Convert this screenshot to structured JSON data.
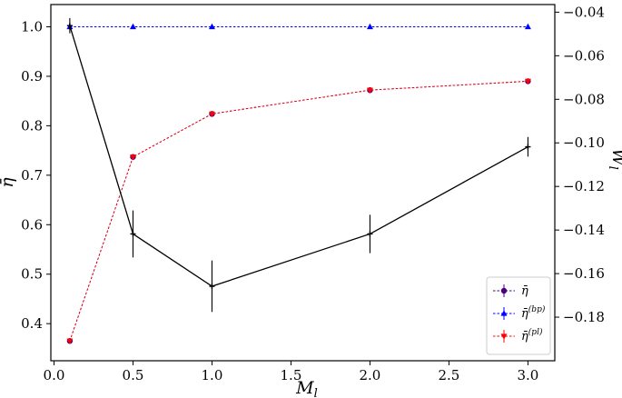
{
  "chart_data": {
    "type": "line",
    "xlabel": "M_l",
    "ylabel_left": "η̄",
    "ylabel_right": "W_l",
    "xlim": [
      -0.02,
      3.17
    ],
    "ylim_left": [
      0.325,
      1.045
    ],
    "ylim_right": [
      -0.2,
      -0.0365
    ],
    "x_ticks": [
      "0.0",
      "0.5",
      "1.0",
      "1.5",
      "2.0",
      "2.5",
      "3.0"
    ],
    "y_ticks_left": [
      "0.4",
      "0.5",
      "0.6",
      "0.7",
      "0.8",
      "0.9",
      "1.0"
    ],
    "y_ticks_right": [
      "−0.18",
      "−0.16",
      "−0.14",
      "−0.12",
      "−0.10",
      "−0.08",
      "−0.06",
      "−0.04"
    ],
    "x": [
      0.1,
      0.5,
      1.0,
      2.0,
      3.0
    ],
    "grid": false,
    "legend_position": "lower-right",
    "series": [
      {
        "name": "η̄",
        "axis": "left",
        "color": "#4b0082",
        "marker": "circle",
        "linestyle": "dotted",
        "values": [
          0.365,
          0.737,
          0.824,
          0.872,
          0.89
        ]
      },
      {
        "name": "η̄(bp)",
        "axis": "left",
        "color": "#0000ff",
        "marker": "triangle-up",
        "linestyle": "dotted",
        "values": [
          1.0,
          1.0,
          1.0,
          1.0,
          1.0
        ]
      },
      {
        "name": "η̄(pl)",
        "axis": "left",
        "color": "#ff0000",
        "marker": "triangle-down",
        "linestyle": "dotted",
        "values": [
          0.365,
          0.737,
          0.824,
          0.872,
          0.89
        ]
      },
      {
        "axis": "right",
        "color": "#000000",
        "marker": "plus",
        "linestyle": "solid",
        "values": [
          -0.0462,
          -0.1418,
          -0.1658,
          -0.1418,
          -0.1018
        ],
        "errors": [
          0.0035,
          0.0108,
          0.0118,
          0.0088,
          0.0045
        ]
      }
    ],
    "legend": [
      {
        "label_main": "η̄",
        "label_sup": "",
        "color": "#4b0082",
        "marker": "circle"
      },
      {
        "label_main": "η̄",
        "label_sup": "(bp)",
        "color": "#0000ff",
        "marker": "triangle-up"
      },
      {
        "label_main": "η̄",
        "label_sup": "(pl)",
        "color": "#ff0000",
        "marker": "triangle-down"
      }
    ]
  }
}
